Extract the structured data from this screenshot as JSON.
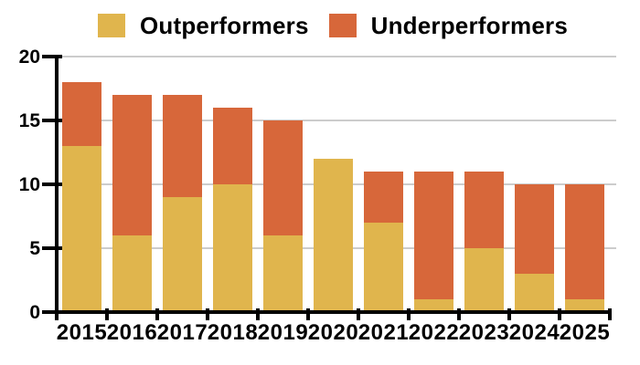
{
  "legend": {
    "items": [
      {
        "label": "Outperformers",
        "color": "#E0B54D"
      },
      {
        "label": "Underperformers",
        "color": "#D7673A"
      }
    ]
  },
  "chart_data": {
    "type": "bar",
    "stacked": true,
    "title": "",
    "xlabel": "",
    "ylabel": "",
    "categories": [
      "2015",
      "2016",
      "2017",
      "2018",
      "2019",
      "2020",
      "2021",
      "2022",
      "2023",
      "2024",
      "2025"
    ],
    "series": [
      {
        "name": "Outperformers",
        "color": "#E0B54D",
        "values": [
          13,
          6,
          9,
          10,
          6,
          12,
          7,
          1,
          5,
          3,
          1
        ]
      },
      {
        "name": "Underperformers",
        "color": "#D7673A",
        "values": [
          5,
          11,
          8,
          6,
          9,
          0,
          4,
          10,
          6,
          7,
          9
        ]
      }
    ],
    "stack_totals": [
      18,
      17,
      17,
      16,
      15,
      12,
      11,
      11,
      11,
      10,
      10
    ],
    "ylim": [
      0,
      20
    ],
    "yticks": [
      0,
      5,
      10,
      15,
      20
    ],
    "grid": true,
    "gridline_color": "#cccccc",
    "axis_color": "#000000",
    "background": "#ffffff",
    "legend_position": "top"
  }
}
